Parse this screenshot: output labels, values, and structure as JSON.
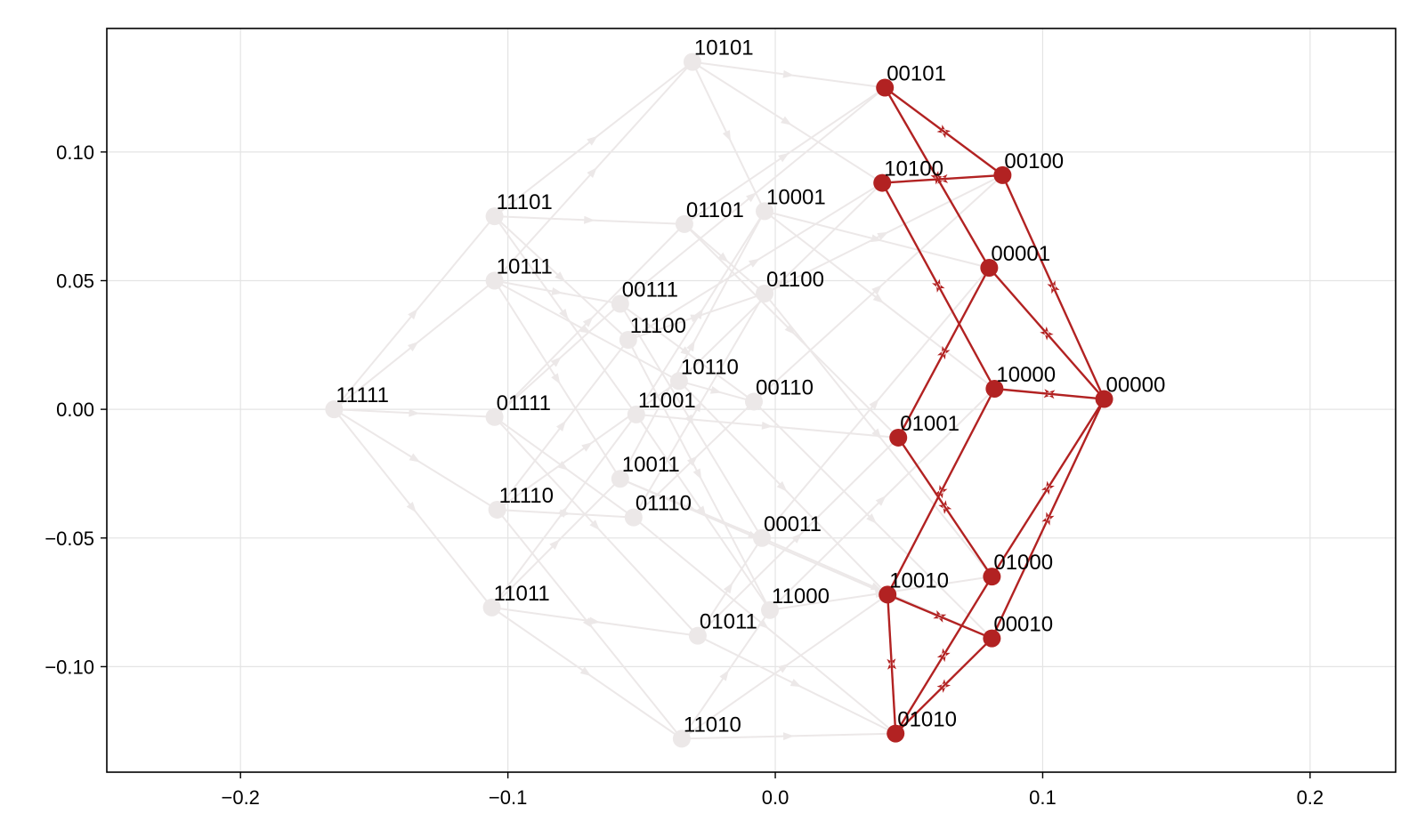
{
  "chart_data": {
    "type": "scatter",
    "title": "",
    "xlabel": "",
    "ylabel": "",
    "xlim": [
      -0.25,
      0.232
    ],
    "ylim": [
      -0.141,
      0.148
    ],
    "xticks": [
      -0.2,
      -0.1,
      0.0,
      0.1,
      0.2
    ],
    "xtick_labels": [
      "−0.2",
      "−0.1",
      "0.0",
      "0.1",
      "0.2"
    ],
    "yticks": [
      -0.1,
      -0.05,
      0.0,
      0.05,
      0.1
    ],
    "ytick_labels": [
      "−0.10",
      "−0.05",
      "0.00",
      "0.05",
      "0.10"
    ],
    "grid": true,
    "colors": {
      "highlight": "#b22222",
      "faded": "#ece8e8",
      "grid": "#e4e4e4",
      "frame": "#000000"
    },
    "nodes": [
      {
        "label": "11111",
        "x": -0.165,
        "y": 0.0,
        "highlight": false
      },
      {
        "label": "11101",
        "x": -0.105,
        "y": 0.075,
        "highlight": false
      },
      {
        "label": "10111",
        "x": -0.105,
        "y": 0.05,
        "highlight": false
      },
      {
        "label": "01111",
        "x": -0.105,
        "y": -0.003,
        "highlight": false
      },
      {
        "label": "11110",
        "x": -0.104,
        "y": -0.039,
        "highlight": false
      },
      {
        "label": "11011",
        "x": -0.106,
        "y": -0.077,
        "highlight": false
      },
      {
        "label": "10101",
        "x": -0.031,
        "y": 0.135,
        "highlight": false
      },
      {
        "label": "01101",
        "x": -0.034,
        "y": 0.072,
        "highlight": false
      },
      {
        "label": "00111",
        "x": -0.058,
        "y": 0.041,
        "highlight": false
      },
      {
        "label": "11100",
        "x": -0.055,
        "y": 0.027,
        "highlight": false
      },
      {
        "label": "10110",
        "x": -0.036,
        "y": 0.011,
        "highlight": false
      },
      {
        "label": "11001",
        "x": -0.052,
        "y": -0.002,
        "highlight": false
      },
      {
        "label": "10011",
        "x": -0.058,
        "y": -0.027,
        "highlight": false
      },
      {
        "label": "01110",
        "x": -0.053,
        "y": -0.042,
        "highlight": false
      },
      {
        "label": "01011",
        "x": -0.029,
        "y": -0.088,
        "highlight": false
      },
      {
        "label": "11010",
        "x": -0.035,
        "y": -0.128,
        "highlight": false
      },
      {
        "label": "10001",
        "x": -0.004,
        "y": 0.077,
        "highlight": false
      },
      {
        "label": "01100",
        "x": -0.004,
        "y": 0.045,
        "highlight": false
      },
      {
        "label": "00110",
        "x": -0.008,
        "y": 0.003,
        "highlight": false
      },
      {
        "label": "00011",
        "x": -0.005,
        "y": -0.05,
        "highlight": false
      },
      {
        "label": "11000",
        "x": -0.002,
        "y": -0.078,
        "highlight": false
      },
      {
        "label": "00101",
        "x": 0.041,
        "y": 0.125,
        "highlight": true
      },
      {
        "label": "10100",
        "x": 0.04,
        "y": 0.088,
        "highlight": true
      },
      {
        "label": "01001",
        "x": 0.046,
        "y": -0.011,
        "highlight": true
      },
      {
        "label": "10010",
        "x": 0.042,
        "y": -0.072,
        "highlight": true
      },
      {
        "label": "01010",
        "x": 0.045,
        "y": -0.126,
        "highlight": true
      },
      {
        "label": "00100",
        "x": 0.085,
        "y": 0.091,
        "highlight": true
      },
      {
        "label": "00001",
        "x": 0.08,
        "y": 0.055,
        "highlight": true
      },
      {
        "label": "10000",
        "x": 0.082,
        "y": 0.008,
        "highlight": true
      },
      {
        "label": "01000",
        "x": 0.081,
        "y": -0.065,
        "highlight": true
      },
      {
        "label": "00010",
        "x": 0.081,
        "y": -0.089,
        "highlight": true
      },
      {
        "label": "00000",
        "x": 0.123,
        "y": 0.004,
        "highlight": true
      }
    ],
    "edges": [
      [
        "00101",
        "00100"
      ],
      [
        "00101",
        "00001"
      ],
      [
        "10100",
        "00100"
      ],
      [
        "10100",
        "10000"
      ],
      [
        "00100",
        "00000"
      ],
      [
        "00001",
        "00000"
      ],
      [
        "00001",
        "01001"
      ],
      [
        "10000",
        "00000"
      ],
      [
        "10000",
        "10010"
      ],
      [
        "01001",
        "01000"
      ],
      [
        "10010",
        "00010"
      ],
      [
        "10010",
        "01010"
      ],
      [
        "01000",
        "00000"
      ],
      [
        "00010",
        "00000"
      ],
      [
        "01000",
        "01010"
      ],
      [
        "00010",
        "01010"
      ],
      [
        "11111",
        "11101"
      ],
      [
        "11111",
        "10111"
      ],
      [
        "11111",
        "01111"
      ],
      [
        "11111",
        "11110"
      ],
      [
        "11111",
        "11011"
      ],
      [
        "11101",
        "10101"
      ],
      [
        "11101",
        "01101"
      ],
      [
        "11101",
        "11100"
      ],
      [
        "11101",
        "11001"
      ],
      [
        "10111",
        "10101"
      ],
      [
        "10111",
        "00111"
      ],
      [
        "10111",
        "10110"
      ],
      [
        "10111",
        "10011"
      ],
      [
        "01111",
        "01101"
      ],
      [
        "01111",
        "00111"
      ],
      [
        "01111",
        "01110"
      ],
      [
        "01111",
        "01011"
      ],
      [
        "11110",
        "11100"
      ],
      [
        "11110",
        "10110"
      ],
      [
        "11110",
        "01110"
      ],
      [
        "11110",
        "11010"
      ],
      [
        "11011",
        "11001"
      ],
      [
        "11011",
        "10011"
      ],
      [
        "11011",
        "01011"
      ],
      [
        "11011",
        "11010"
      ],
      [
        "10101",
        "00101"
      ],
      [
        "10101",
        "10100"
      ],
      [
        "10101",
        "10001"
      ],
      [
        "01101",
        "00101"
      ],
      [
        "01101",
        "01100"
      ],
      [
        "01101",
        "01001"
      ],
      [
        "00111",
        "00101"
      ],
      [
        "00111",
        "00110"
      ],
      [
        "00111",
        "00011"
      ],
      [
        "11100",
        "10100"
      ],
      [
        "11100",
        "01100"
      ],
      [
        "11100",
        "11000"
      ],
      [
        "10110",
        "10100"
      ],
      [
        "10110",
        "00110"
      ],
      [
        "10110",
        "10010"
      ],
      [
        "11001",
        "10001"
      ],
      [
        "11001",
        "01001"
      ],
      [
        "11001",
        "11000"
      ],
      [
        "10011",
        "10001"
      ],
      [
        "10011",
        "00011"
      ],
      [
        "10011",
        "10010"
      ],
      [
        "01110",
        "01100"
      ],
      [
        "01110",
        "00110"
      ],
      [
        "01110",
        "01010"
      ],
      [
        "01011",
        "01001"
      ],
      [
        "01011",
        "00011"
      ],
      [
        "01011",
        "01010"
      ],
      [
        "11010",
        "11000"
      ],
      [
        "11010",
        "10010"
      ],
      [
        "11010",
        "01010"
      ],
      [
        "10001",
        "10000"
      ],
      [
        "10001",
        "00001"
      ],
      [
        "01100",
        "00100"
      ],
      [
        "01100",
        "01000"
      ],
      [
        "00110",
        "00100"
      ],
      [
        "00110",
        "00010"
      ],
      [
        "00011",
        "00001"
      ],
      [
        "00011",
        "00010"
      ],
      [
        "11000",
        "10000"
      ],
      [
        "11000",
        "01000"
      ]
    ]
  }
}
